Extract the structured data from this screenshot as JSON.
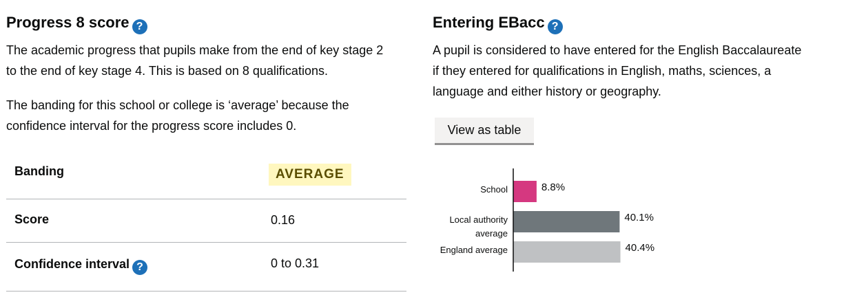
{
  "progress8": {
    "title": "Progress 8 score",
    "help_glyph": "?",
    "description_line1": "The academic progress that pupils make from the end of key stage 2",
    "description_line2": "to the end of key stage 4. This is based on 8 qualifications.",
    "banding_note_line1": "The banding for this school or college is ‘average’ because the",
    "banding_note_line2": "confidence interval for the progress score includes 0.",
    "rows": [
      {
        "label": "Banding",
        "value": "AVERAGE"
      },
      {
        "label": "Score",
        "value": "0.16"
      },
      {
        "label": "Confidence interval",
        "value": "0 to 0.31"
      }
    ]
  },
  "ebacc": {
    "title": "Entering EBacc",
    "help_glyph": "?",
    "description_line1": "A pupil is considered to have entered for the English Baccalaureate",
    "description_line2": "if they entered for qualifications in English, maths, sciences, a",
    "description_line3": "language and either history or geography.",
    "view_table_label": "View as table"
  },
  "chart_data": {
    "type": "bar",
    "orientation": "horizontal",
    "categories": [
      "School",
      "Local authority average",
      "England average"
    ],
    "category_lines": [
      [
        "School"
      ],
      [
        "Local authority",
        "average"
      ],
      [
        "England average"
      ]
    ],
    "values": [
      8.8,
      40.1,
      40.4
    ],
    "value_labels": [
      "8.8%",
      "40.1%",
      "40.4%"
    ],
    "colors": [
      "#d53880",
      "#6f777b",
      "#bfc1c3"
    ],
    "xlim": [
      0,
      100
    ]
  }
}
